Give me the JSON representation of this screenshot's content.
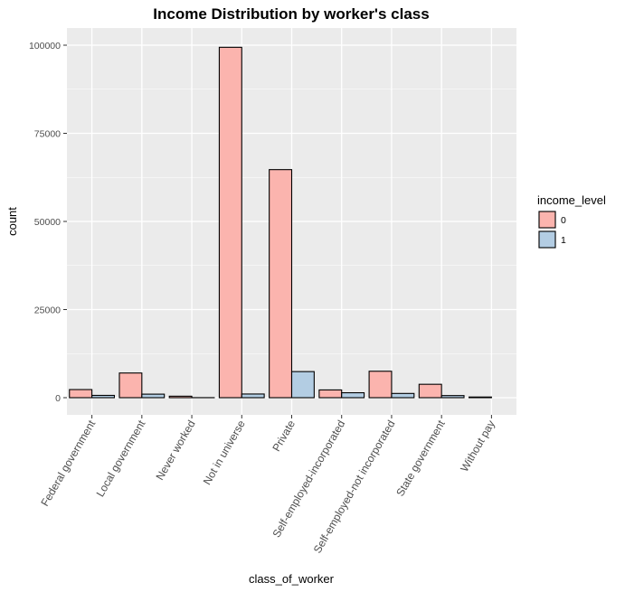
{
  "chart_data": {
    "type": "bar",
    "title": "Income Distribution by worker's class",
    "xlabel": "class_of_worker",
    "ylabel": "count",
    "categories": [
      "Federal government",
      "Local government",
      "Never worked",
      "Not in universe",
      "Private",
      "Self-employed-incorporated",
      "Self-employed-not incorporated",
      "State government",
      "Without pay"
    ],
    "series": [
      {
        "name": "0",
        "color": "#FBB4AE",
        "values": [
          2300,
          7000,
          420,
          99400,
          64700,
          2200,
          7500,
          3800,
          190
        ]
      },
      {
        "name": "1",
        "color": "#B3CDE3",
        "values": [
          650,
          1000,
          15,
          1040,
          7400,
          1400,
          1200,
          600,
          0
        ]
      }
    ],
    "ylim": [
      0,
      105000
    ],
    "yticks": [
      0,
      25000,
      50000,
      75000,
      100000
    ],
    "ytick_labels": [
      "0",
      "25000",
      "50000",
      "75000",
      "100000"
    ],
    "legend": {
      "title": "income_level",
      "position": "right"
    },
    "grid": true,
    "background": "#EBEBEB"
  }
}
